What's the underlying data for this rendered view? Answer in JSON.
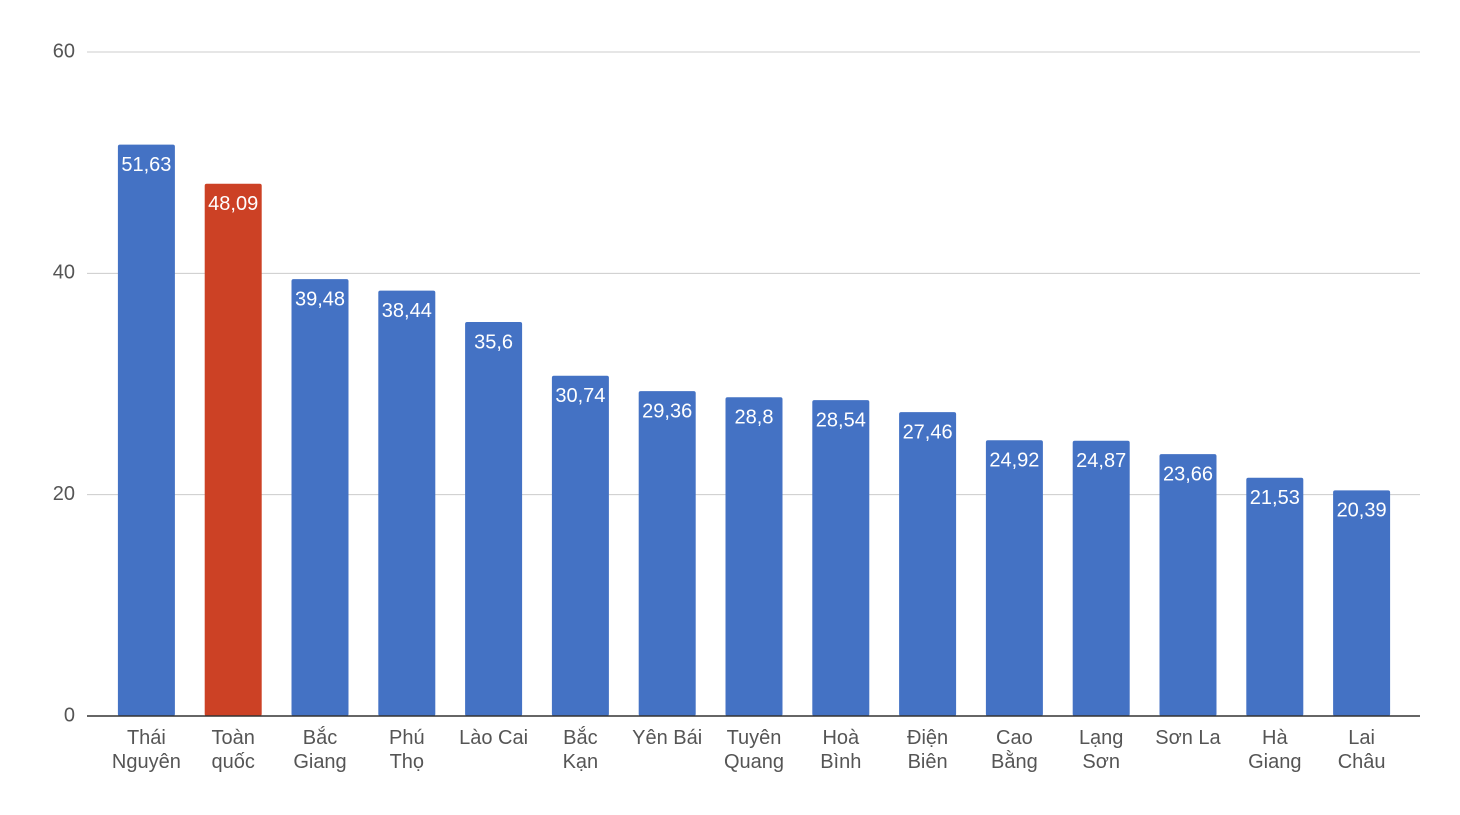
{
  "chart_data": {
    "type": "bar",
    "categories": [
      "Thái\nNguyên",
      "Toàn\nquốc",
      "Bắc\nGiang",
      "Phú\nThọ",
      "Lào Cai",
      "Bắc\nKạn",
      "Yên Bái",
      "Tuyên\nQuang",
      "Hoà\nBình",
      "Điện\nBiên",
      "Cao\nBằng",
      "Lạng\nSơn",
      "Sơn La",
      "Hà\nGiang",
      "Lai\nChâu"
    ],
    "values": [
      51.63,
      48.09,
      39.48,
      38.44,
      35.6,
      30.74,
      29.36,
      28.8,
      28.54,
      27.46,
      24.92,
      24.87,
      23.66,
      21.53,
      20.39
    ],
    "value_labels": [
      "51,63",
      "48,09",
      "39,48",
      "38,44",
      "35,6",
      "30,74",
      "29,36",
      "28,8",
      "28,54",
      "27,46",
      "24,92",
      "24,87",
      "23,66",
      "21,53",
      "20,39"
    ],
    "colors": [
      "#4472c4",
      "#cc4125",
      "#4472c4",
      "#4472c4",
      "#4472c4",
      "#4472c4",
      "#4472c4",
      "#4472c4",
      "#4472c4",
      "#4472c4",
      "#4472c4",
      "#4472c4",
      "#4472c4",
      "#4472c4",
      "#4472c4"
    ],
    "ylim": [
      0,
      60
    ],
    "yticks": [
      0,
      20,
      40,
      60
    ],
    "grid": true
  }
}
